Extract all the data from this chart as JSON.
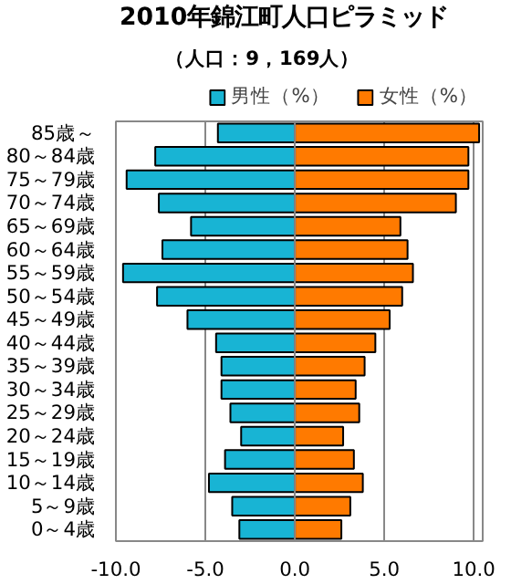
{
  "chart_data": {
    "type": "bar",
    "orientation": "horizontal",
    "stacked": true,
    "title": "2010年錦江町人口ピラミッド",
    "subtitle": "（人口：9，169人）",
    "categories": [
      "85歳～",
      "80～84歳",
      "75～79歳",
      "70～74歳",
      "65～69歳",
      "60～64歳",
      "55～59歳",
      "50～54歳",
      "45～49歳",
      "40～44歳",
      "35～39歳",
      "30～34歳",
      "25～29歳",
      "20～24歳",
      "15～19歳",
      "10～14歳",
      "5～9歳",
      "0～4歳"
    ],
    "series": [
      {
        "name": "男性（%）",
        "color": "#18b4d4",
        "values": [
          -4.3,
          -7.8,
          -9.4,
          -7.6,
          -5.8,
          -7.4,
          -9.6,
          -7.7,
          -6.0,
          -4.4,
          -4.1,
          -4.1,
          -3.6,
          -3.0,
          -3.9,
          -4.8,
          -3.5,
          -3.1
        ]
      },
      {
        "name": "女性（%）",
        "color": "#ff7a00",
        "values": [
          10.3,
          9.7,
          9.7,
          9.0,
          5.9,
          6.3,
          6.6,
          6.0,
          5.3,
          4.5,
          3.9,
          3.4,
          3.6,
          2.7,
          3.3,
          3.8,
          3.1,
          2.6
        ]
      }
    ],
    "xlim": [
      -10,
      10.5
    ],
    "xticks": [
      {
        "value": -10,
        "label": "-10.0"
      },
      {
        "value": -5,
        "label": "-5.0"
      },
      {
        "value": 0,
        "label": "0.0"
      },
      {
        "value": 5,
        "label": "5.0"
      },
      {
        "value": 10,
        "label": "10.0"
      }
    ],
    "grid": "x",
    "legend": "top right"
  }
}
